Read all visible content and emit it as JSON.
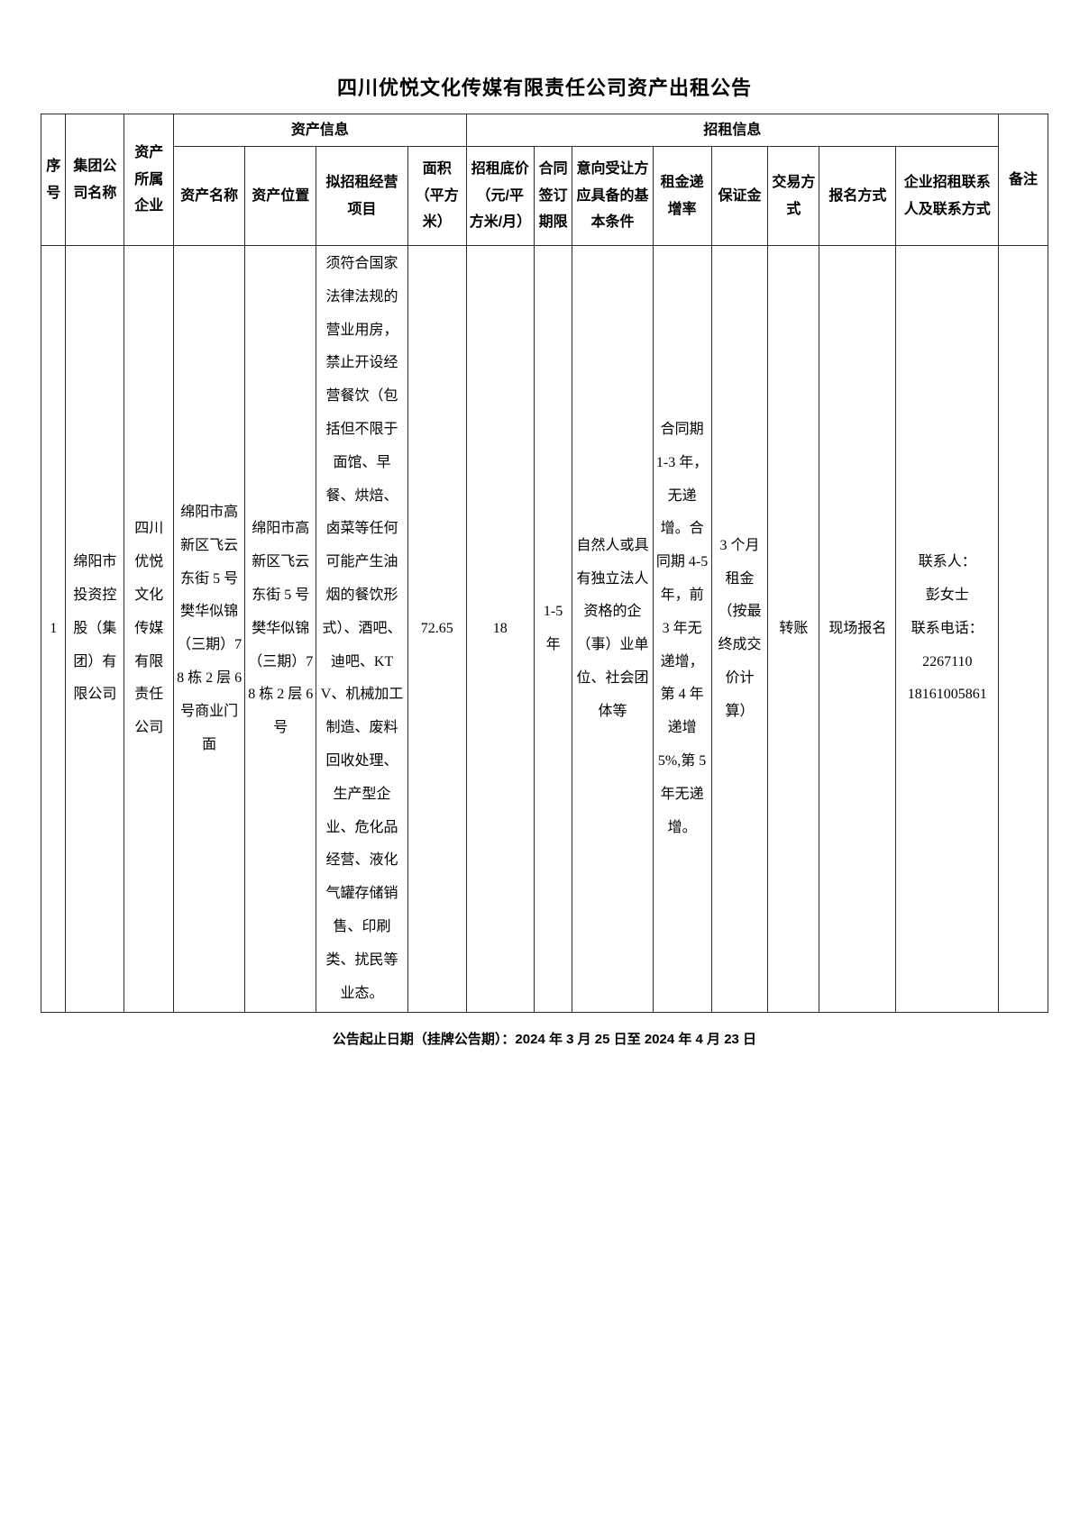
{
  "page": {
    "title": "四川优悦文化传媒有限责任公司资产出租公告",
    "footer": "公告起止日期（挂牌公告期）：2024 年 3 月 25 日至 2024 年 4 月 23 日"
  },
  "table": {
    "groups": {
      "asset_info": "资产信息",
      "rental_info": "招租信息"
    },
    "headers": {
      "index": "序号",
      "group_company": "集团公司名称",
      "asset_owner": "资产所属企业",
      "asset_name": "资产名称",
      "asset_location": "资产位置",
      "proposed_business": "拟招租经营项目",
      "area": "面积（平方米）",
      "floor_price": "招租底价（元/平方米/月）",
      "contract_term": "合同签订期限",
      "transferee_conditions": "意向受让方应具备的基本条件",
      "rent_increase": "租金递增率",
      "deposit": "保证金",
      "transaction_method": "交易方式",
      "registration_method": "报名方式",
      "contact": "企业招租联系人及联系方式",
      "remarks": "备注"
    },
    "rows": [
      {
        "index": "1",
        "group_company": "绵阳市投资控股（集团）有限公司",
        "asset_owner": "四川优悦文化传媒有限责任公司",
        "asset_name": "绵阳市高新区飞云东街 5 号樊华似锦（三期）78 栋 2 层 6 号商业门面",
        "asset_location": "绵阳市高新区飞云东街 5 号樊华似锦（三期）78 栋 2 层 6 号",
        "proposed_business": "须符合国家法律法规的营业用房，禁止开设经营餐饮（包括但不限于面馆、早餐、烘焙、卤菜等任何可能产生油烟的餐饮形式）、酒吧、迪吧、KTV、机械加工制造、废料回收处理、生产型企业、危化品经营、液化气罐存储销售、印刷类、扰民等业态。",
        "area": "72.65",
        "floor_price": "18",
        "contract_term": "1-5 年",
        "transferee_conditions": "自然人或具有独立法人资格的企（事）业单位、社会团体等",
        "rent_increase": "合同期 1-3 年，无递增。合同期 4-5 年，前 3 年无递增，第 4 年递增 5%,第 5 年无递增。",
        "deposit": "3 个月租金（按最终成交价计算）",
        "transaction_method": "转账",
        "registration_method": "现场报名",
        "contact_lines": [
          "联系人：",
          "彭女士",
          "联系电话：",
          "2267110",
          "18161005861"
        ],
        "remarks": ""
      }
    ]
  }
}
